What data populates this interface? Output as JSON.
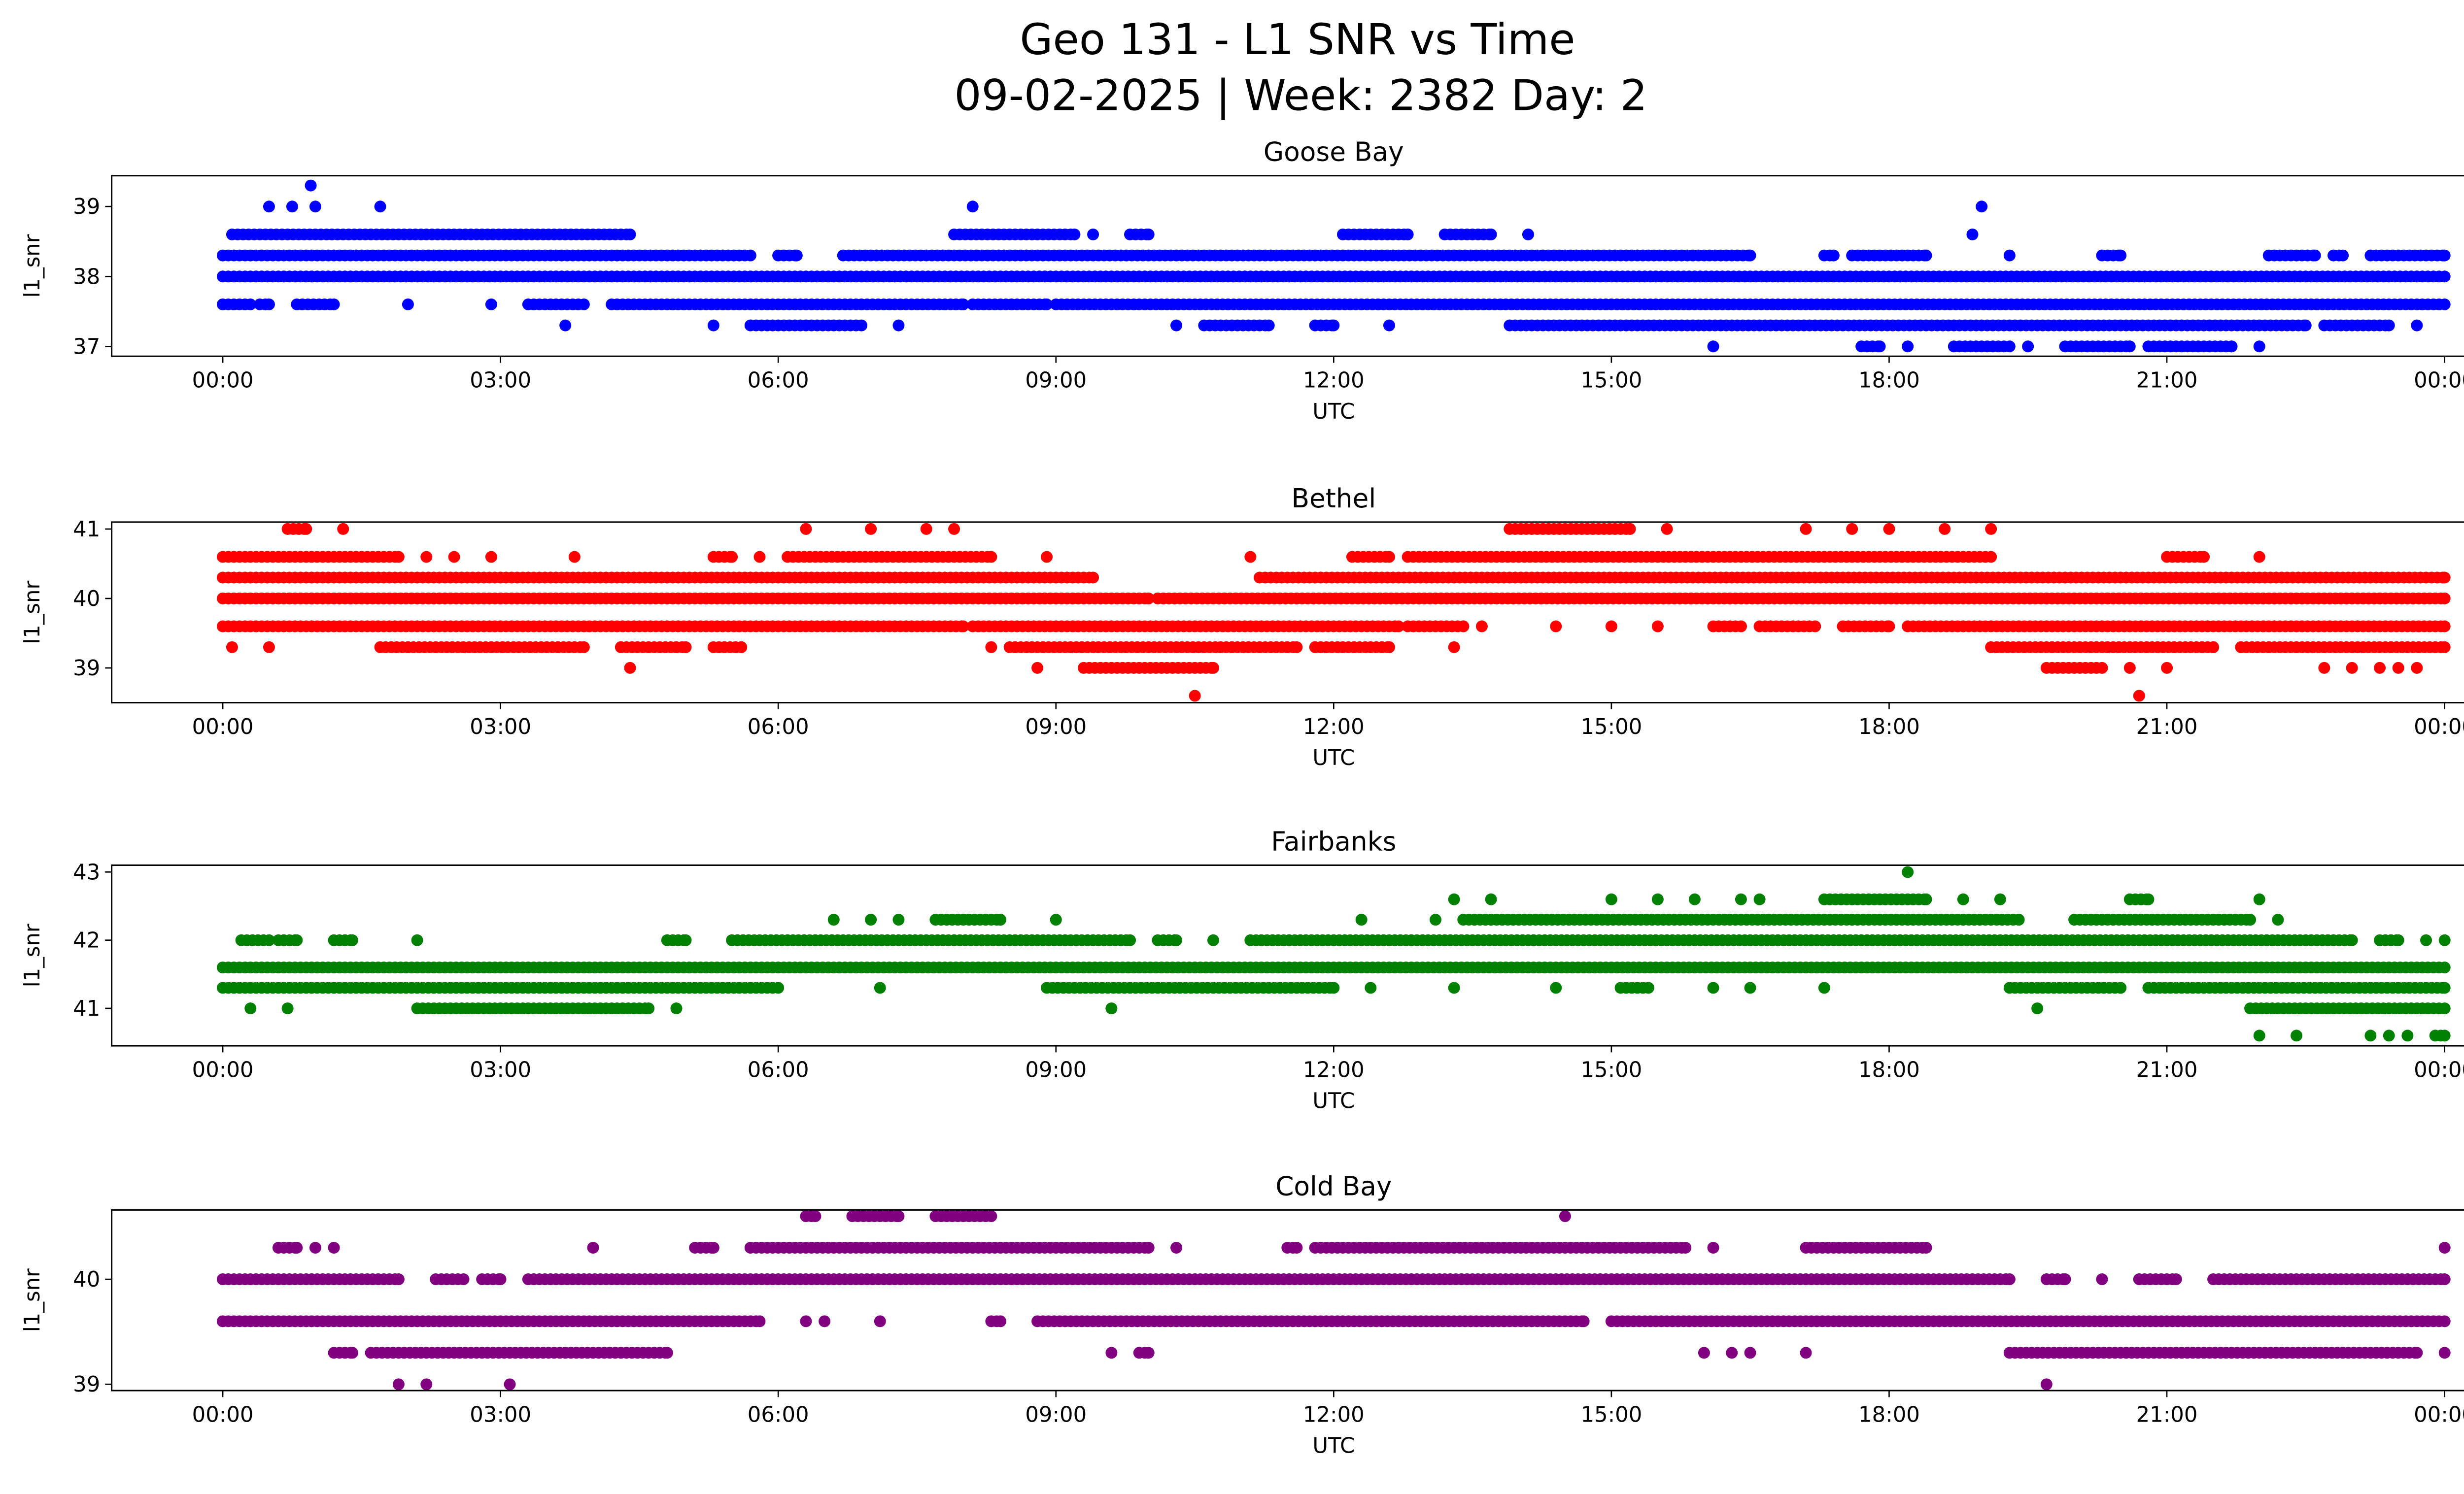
{
  "title_line1": "Geo 131 - L1 SNR vs Time",
  "title_line2": "09-02-2025 | Week: 2382 Day: 2",
  "chart_data": [
    {
      "type": "scatter",
      "title": "Goose Bay",
      "xlabel": "UTC",
      "ylabel": "l1_snr",
      "color": "#0000ff",
      "xlim_hours": [
        -1.2,
        25.2
      ],
      "xticks": [
        "00:00",
        "03:00",
        "06:00",
        "09:00",
        "12:00",
        "15:00",
        "18:00",
        "21:00",
        "00:00"
      ],
      "yticks": [
        37,
        38,
        39
      ],
      "ylim": [
        36.86,
        39.44
      ],
      "series_runs_note": "points present at each SNR level over [start_hour, end_hour] intervals",
      "levels": [
        {
          "snr": 38.0,
          "runs": [
            [
              0,
              24
            ]
          ]
        },
        {
          "snr": 38.3,
          "runs": [
            [
              0,
              5.7
            ],
            [
              6.0,
              6.2
            ],
            [
              6.7,
              16.5
            ],
            [
              17.3,
              17.4
            ],
            [
              17.6,
              18.4
            ],
            [
              19.3,
              19.3
            ],
            [
              20.3,
              20.5
            ],
            [
              22.1,
              22.6
            ],
            [
              22.8,
              22.9
            ],
            [
              23.2,
              24
            ]
          ]
        },
        {
          "snr": 37.6,
          "runs": [
            [
              0,
              0.3
            ],
            [
              0.4,
              0.5
            ],
            [
              0.8,
              1.2
            ],
            [
              2.0,
              2.0
            ],
            [
              2.9,
              2.9
            ],
            [
              3.3,
              3.9
            ],
            [
              4.2,
              8.0
            ],
            [
              8.1,
              8.9
            ],
            [
              9.0,
              24
            ]
          ]
        },
        {
          "snr": 37.3,
          "runs": [
            [
              3.7,
              3.7
            ],
            [
              5.3,
              5.3
            ],
            [
              5.7,
              6.9
            ],
            [
              7.3,
              7.3
            ],
            [
              10.3,
              10.3
            ],
            [
              10.6,
              11.3
            ],
            [
              11.8,
              12.0
            ],
            [
              12.6,
              12.6
            ],
            [
              13.9,
              22.5
            ],
            [
              22.7,
              23.4
            ],
            [
              23.7,
              23.7
            ]
          ]
        },
        {
          "snr": 38.6,
          "runs": [
            [
              0.1,
              4.4
            ],
            [
              7.9,
              9.2
            ],
            [
              9.4,
              9.4
            ],
            [
              9.8,
              10.0
            ],
            [
              12.1,
              12.8
            ],
            [
              13.2,
              13.7
            ],
            [
              14.1,
              14.1
            ],
            [
              18.9,
              18.9
            ]
          ]
        },
        {
          "snr": 39.0,
          "runs": [
            [
              0.5,
              0.5
            ],
            [
              0.75,
              0.75
            ],
            [
              1.0,
              1.0
            ],
            [
              1.7,
              1.7
            ],
            [
              8.1,
              8.1
            ],
            [
              19.0,
              19.0
            ]
          ]
        },
        {
          "snr": 39.3,
          "runs": [
            [
              0.95,
              0.95
            ]
          ]
        },
        {
          "snr": 37.0,
          "runs": [
            [
              16.1,
              16.1
            ],
            [
              17.7,
              17.9
            ],
            [
              18.2,
              18.2
            ],
            [
              18.7,
              19.3
            ],
            [
              19.5,
              19.5
            ],
            [
              19.9,
              20.6
            ],
            [
              20.8,
              21.7
            ],
            [
              22.0,
              22.0
            ]
          ]
        }
      ]
    },
    {
      "type": "scatter",
      "title": "Bethel",
      "xlabel": "UTC",
      "ylabel": "l1_snr",
      "color": "#ff0000",
      "xlim_hours": [
        -1.2,
        25.2
      ],
      "xticks": [
        "00:00",
        "03:00",
        "06:00",
        "09:00",
        "12:00",
        "15:00",
        "18:00",
        "21:00",
        "00:00"
      ],
      "yticks": [
        39,
        40,
        41
      ],
      "ylim": [
        38.5,
        41.1
      ],
      "levels": [
        {
          "snr": 40.0,
          "runs": [
            [
              0,
              10.0
            ],
            [
              10.1,
              24
            ]
          ]
        },
        {
          "snr": 40.3,
          "runs": [
            [
              0,
              9.4
            ],
            [
              11.2,
              24
            ]
          ]
        },
        {
          "snr": 40.6,
          "runs": [
            [
              0,
              1.9
            ],
            [
              2.2,
              2.2
            ],
            [
              2.5,
              2.5
            ],
            [
              2.9,
              2.9
            ],
            [
              3.8,
              3.8
            ],
            [
              5.3,
              5.5
            ],
            [
              5.8,
              5.8
            ],
            [
              6.1,
              8.3
            ],
            [
              8.9,
              8.9
            ],
            [
              11.1,
              11.1
            ],
            [
              12.2,
              12.6
            ],
            [
              12.8,
              19.1
            ],
            [
              21.0,
              21.4
            ],
            [
              22.0,
              22.0
            ]
          ]
        },
        {
          "snr": 39.6,
          "runs": [
            [
              0,
              8.0
            ],
            [
              8.1,
              12.7
            ],
            [
              12.8,
              13.4
            ],
            [
              13.6,
              13.6
            ],
            [
              14.4,
              14.4
            ],
            [
              15.0,
              15.0
            ],
            [
              15.5,
              15.5
            ],
            [
              16.1,
              16.4
            ],
            [
              16.6,
              17.2
            ],
            [
              17.5,
              18.0
            ],
            [
              18.2,
              24
            ]
          ]
        },
        {
          "snr": 39.3,
          "runs": [
            [
              0.1,
              0.1
            ],
            [
              0.5,
              0.5
            ],
            [
              1.7,
              3.9
            ],
            [
              4.3,
              5.0
            ],
            [
              5.3,
              5.6
            ],
            [
              8.3,
              8.3
            ],
            [
              8.5,
              11.6
            ],
            [
              11.8,
              12.6
            ],
            [
              13.3,
              13.3
            ],
            [
              19.1,
              21.5
            ],
            [
              21.8,
              24
            ]
          ]
        },
        {
          "snr": 39.0,
          "runs": [
            [
              4.4,
              4.4
            ],
            [
              8.8,
              8.8
            ],
            [
              9.3,
              10.7
            ],
            [
              19.7,
              20.3
            ],
            [
              20.6,
              20.6
            ],
            [
              21.0,
              21.0
            ],
            [
              22.7,
              22.7
            ],
            [
              23.0,
              23.0
            ],
            [
              23.3,
              23.3
            ],
            [
              23.5,
              23.5
            ],
            [
              23.7,
              23.7
            ]
          ]
        },
        {
          "snr": 41.0,
          "runs": [
            [
              0.7,
              0.9
            ],
            [
              1.3,
              1.3
            ],
            [
              6.3,
              6.3
            ],
            [
              7.0,
              7.0
            ],
            [
              7.6,
              7.6
            ],
            [
              7.9,
              7.9
            ],
            [
              13.9,
              15.2
            ],
            [
              15.6,
              15.6
            ],
            [
              17.1,
              17.1
            ],
            [
              17.6,
              17.6
            ],
            [
              18.0,
              18.0
            ],
            [
              18.6,
              18.6
            ],
            [
              19.1,
              19.1
            ]
          ]
        },
        {
          "snr": 38.6,
          "runs": [
            [
              10.5,
              10.5
            ],
            [
              20.7,
              20.7
            ]
          ]
        }
      ]
    },
    {
      "type": "scatter",
      "title": "Fairbanks",
      "xlabel": "UTC",
      "ylabel": "l1_snr",
      "color": "#008000",
      "xlim_hours": [
        -1.2,
        25.2
      ],
      "xticks": [
        "00:00",
        "03:00",
        "06:00",
        "09:00",
        "12:00",
        "15:00",
        "18:00",
        "21:00",
        "00:00"
      ],
      "yticks": [
        41,
        42,
        43
      ],
      "ylim": [
        40.45,
        43.1
      ],
      "levels": [
        {
          "snr": 41.6,
          "runs": [
            [
              0,
              24
            ]
          ]
        },
        {
          "snr": 41.3,
          "runs": [
            [
              0,
              6.0
            ],
            [
              7.1,
              7.1
            ],
            [
              8.9,
              12.0
            ],
            [
              12.4,
              12.4
            ],
            [
              13.3,
              13.3
            ],
            [
              14.4,
              14.4
            ],
            [
              15.1,
              15.4
            ],
            [
              16.1,
              16.1
            ],
            [
              16.5,
              16.5
            ],
            [
              17.3,
              17.3
            ],
            [
              19.3,
              20.5
            ],
            [
              20.8,
              24
            ]
          ]
        },
        {
          "snr": 41.0,
          "runs": [
            [
              0.3,
              0.3
            ],
            [
              0.7,
              0.7
            ],
            [
              2.1,
              4.6
            ],
            [
              4.9,
              4.9
            ],
            [
              9.6,
              9.6
            ],
            [
              19.6,
              19.6
            ],
            [
              21.9,
              24
            ]
          ]
        },
        {
          "snr": 42.0,
          "runs": [
            [
              0.2,
              0.5
            ],
            [
              0.6,
              0.8
            ],
            [
              1.2,
              1.4
            ],
            [
              2.1,
              2.1
            ],
            [
              4.8,
              5.0
            ],
            [
              5.5,
              9.8
            ],
            [
              10.1,
              10.3
            ],
            [
              10.7,
              10.7
            ],
            [
              11.1,
              23.0
            ],
            [
              23.3,
              23.5
            ],
            [
              23.8,
              23.8
            ],
            [
              24,
              24
            ]
          ]
        },
        {
          "snr": 42.3,
          "runs": [
            [
              6.6,
              6.6
            ],
            [
              7.0,
              7.0
            ],
            [
              7.3,
              7.3
            ],
            [
              7.7,
              8.4
            ],
            [
              9.0,
              9.0
            ],
            [
              12.3,
              12.3
            ],
            [
              13.1,
              13.1
            ],
            [
              13.4,
              19.4
            ],
            [
              20.0,
              21.9
            ],
            [
              22.2,
              22.2
            ]
          ]
        },
        {
          "snr": 42.6,
          "runs": [
            [
              13.3,
              13.3
            ],
            [
              13.7,
              13.7
            ],
            [
              15.0,
              15.0
            ],
            [
              15.5,
              15.5
            ],
            [
              15.9,
              15.9
            ],
            [
              16.4,
              16.4
            ],
            [
              16.6,
              16.6
            ],
            [
              17.3,
              18.4
            ],
            [
              18.8,
              18.8
            ],
            [
              19.2,
              19.2
            ],
            [
              20.6,
              20.8
            ],
            [
              22.0,
              22.0
            ]
          ]
        },
        {
          "snr": 43.0,
          "runs": [
            [
              18.2,
              18.2
            ]
          ]
        },
        {
          "snr": 40.6,
          "runs": [
            [
              22.0,
              22.0
            ],
            [
              22.4,
              22.4
            ],
            [
              23.2,
              23.2
            ],
            [
              23.4,
              23.4
            ],
            [
              23.6,
              23.6
            ],
            [
              23.9,
              24.0
            ]
          ]
        }
      ]
    },
    {
      "type": "scatter",
      "title": "Cold Bay",
      "xlabel": "UTC",
      "ylabel": "l1_snr",
      "color": "#800080",
      "xlim_hours": [
        -1.2,
        25.2
      ],
      "xticks": [
        "00:00",
        "03:00",
        "06:00",
        "09:00",
        "12:00",
        "15:00",
        "18:00",
        "21:00",
        "00:00"
      ],
      "yticks": [
        39,
        40
      ],
      "ylim": [
        38.94,
        40.66
      ],
      "levels": [
        {
          "snr": 40.0,
          "runs": [
            [
              0,
              1.9
            ],
            [
              2.3,
              2.6
            ],
            [
              2.8,
              3.0
            ],
            [
              3.3,
              19.3
            ],
            [
              19.7,
              19.9
            ],
            [
              20.3,
              20.3
            ],
            [
              20.7,
              21.1
            ],
            [
              21.5,
              24
            ]
          ]
        },
        {
          "snr": 39.6,
          "runs": [
            [
              0,
              5.8
            ],
            [
              6.3,
              6.3
            ],
            [
              6.5,
              6.5
            ],
            [
              7.1,
              7.1
            ],
            [
              8.3,
              8.4
            ],
            [
              8.8,
              14.7
            ],
            [
              15.0,
              24
            ]
          ]
        },
        {
          "snr": 39.3,
          "runs": [
            [
              1.2,
              1.4
            ],
            [
              1.6,
              4.8
            ],
            [
              9.6,
              9.6
            ],
            [
              9.9,
              10.0
            ],
            [
              16.0,
              16.0
            ],
            [
              16.3,
              16.3
            ],
            [
              16.5,
              16.5
            ],
            [
              17.1,
              17.1
            ],
            [
              19.3,
              23.7
            ],
            [
              24,
              24
            ]
          ]
        },
        {
          "snr": 40.3,
          "runs": [
            [
              0.6,
              0.8
            ],
            [
              1.0,
              1.0
            ],
            [
              1.2,
              1.2
            ],
            [
              4.0,
              4.0
            ],
            [
              5.1,
              5.3
            ],
            [
              5.7,
              10.0
            ],
            [
              10.3,
              10.3
            ],
            [
              11.5,
              11.6
            ],
            [
              11.8,
              15.8
            ],
            [
              16.1,
              16.1
            ],
            [
              17.1,
              18.4
            ],
            [
              24,
              24
            ]
          ]
        },
        {
          "snr": 40.6,
          "runs": [
            [
              6.3,
              6.4
            ],
            [
              6.8,
              7.3
            ],
            [
              7.7,
              8.3
            ],
            [
              14.5,
              14.5
            ]
          ]
        },
        {
          "snr": 39.0,
          "runs": [
            [
              1.9,
              1.9
            ],
            [
              2.2,
              2.2
            ],
            [
              3.1,
              3.1
            ],
            [
              19.7,
              19.7
            ]
          ]
        }
      ]
    }
  ]
}
